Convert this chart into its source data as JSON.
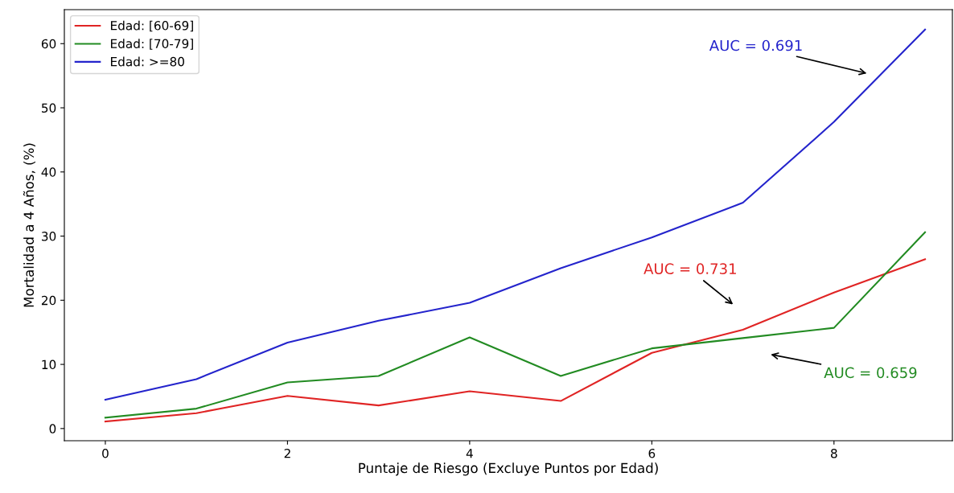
{
  "chart_data": {
    "type": "line",
    "xlabel": "Puntaje de Riesgo (Excluye Puntos por Edad)",
    "ylabel": "Mortalidad a 4 Años, (%)",
    "x": [
      0,
      1,
      2,
      3,
      4,
      5,
      6,
      7,
      8,
      9
    ],
    "series": [
      {
        "name": "Edad: [60-69]",
        "color": "#e02424",
        "values": [
          1.1,
          2.4,
          5.1,
          3.6,
          5.8,
          4.3,
          11.8,
          15.4,
          21.2,
          26.4
        ]
      },
      {
        "name": "Edad: [70-79]",
        "color": "#228b22",
        "values": [
          1.7,
          3.1,
          7.2,
          8.2,
          14.2,
          8.2,
          12.5,
          14.1,
          15.7,
          30.6
        ]
      },
      {
        "name": "Edad: >=80",
        "color": "#2424cc",
        "values": [
          4.5,
          7.7,
          13.4,
          16.8,
          19.6,
          25.0,
          29.8,
          35.2,
          47.8,
          62.2
        ]
      }
    ],
    "annotations": [
      "AUC = 0.731",
      "AUC = 0.659",
      "AUC = 0.691"
    ],
    "xlim": [
      -0.45,
      9.3
    ],
    "ylim": [
      -1.9,
      65.3
    ],
    "xticks": [
      0,
      2,
      4,
      6,
      8
    ],
    "yticks": [
      0,
      10,
      20,
      30,
      40,
      50,
      60
    ],
    "grid": false,
    "legend": "top left",
    "marker": "none",
    "line_style": "solid"
  }
}
